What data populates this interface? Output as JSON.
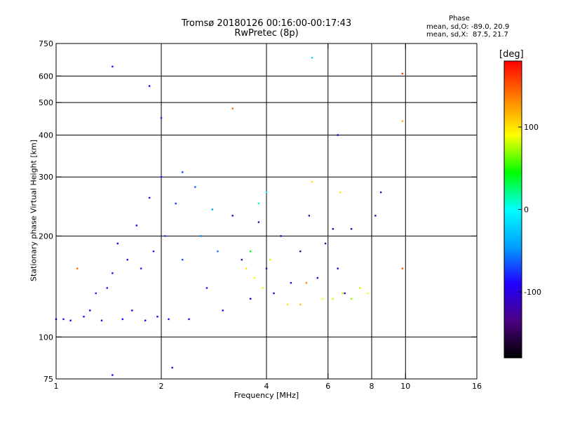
{
  "title": "Tromsø 20180126 00:16:00-00:17:43",
  "subtitle": "RwPretec (8p)",
  "stats": {
    "heading": "Phase",
    "line_o": "mean, sd,O: -89.0, 20.9",
    "line_x": "mean, sd,X:  87.5, 21.7"
  },
  "colorbar": {
    "unit": "[deg]",
    "range": [
      -180,
      180
    ],
    "ticks": [
      {
        "value": 100,
        "label": "100"
      },
      {
        "value": 0,
        "label": "0"
      },
      {
        "value": -100,
        "label": "-100"
      }
    ],
    "colormap": [
      "#000000",
      "#4b0082",
      "#2000ff",
      "#00a0ff",
      "#00ffff",
      "#00ff00",
      "#ffff00",
      "#ff8000",
      "#ff0000"
    ]
  },
  "chart_data": {
    "type": "scatter",
    "title": "Tromsø 20180126 00:16:00-00:17:43",
    "subtitle": "RwPretec (8p)",
    "xlabel": "Frequency [MHz]",
    "ylabel": "Stationary phase Virtual Height [km]",
    "xscale": "log",
    "yscale": "log",
    "xlim": [
      1,
      16
    ],
    "ylim": [
      75,
      750
    ],
    "xticks": [
      {
        "value": 1,
        "label": "1"
      },
      {
        "value": 2,
        "label": "2"
      },
      {
        "value": 4,
        "label": "4"
      },
      {
        "value": 6,
        "label": "6"
      },
      {
        "value": 8,
        "label": "8"
      },
      {
        "value": 10,
        "label": "10"
      },
      {
        "value": 16,
        "label": "16"
      }
    ],
    "yticks": [
      {
        "value": 75,
        "label": "75"
      },
      {
        "value": 100,
        "label": "100"
      },
      {
        "value": 200,
        "label": "200"
      },
      {
        "value": 300,
        "label": "300"
      },
      {
        "value": 400,
        "label": "400"
      },
      {
        "value": 500,
        "label": "500"
      },
      {
        "value": 600,
        "label": "600"
      },
      {
        "value": 750,
        "label": "750"
      }
    ],
    "grid_x": [
      2,
      4,
      6,
      8,
      10
    ],
    "grid_y": [
      100,
      200,
      300,
      400,
      500,
      600
    ],
    "grid": true,
    "color_by": "phase (deg)",
    "series": [
      {
        "values": [
          {
            "x": 1.0,
            "y": 113,
            "c": -95
          },
          {
            "x": 1.05,
            "y": 113,
            "c": -95
          },
          {
            "x": 1.1,
            "y": 112,
            "c": -90
          },
          {
            "x": 1.15,
            "y": 160,
            "c": 140
          },
          {
            "x": 1.2,
            "y": 115,
            "c": -95
          },
          {
            "x": 1.25,
            "y": 120,
            "c": -90
          },
          {
            "x": 1.3,
            "y": 135,
            "c": -80
          },
          {
            "x": 1.35,
            "y": 112,
            "c": -100
          },
          {
            "x": 1.4,
            "y": 140,
            "c": -85
          },
          {
            "x": 1.45,
            "y": 155,
            "c": -90
          },
          {
            "x": 1.5,
            "y": 190,
            "c": -90
          },
          {
            "x": 1.55,
            "y": 113,
            "c": -95
          },
          {
            "x": 1.6,
            "y": 170,
            "c": -85
          },
          {
            "x": 1.65,
            "y": 120,
            "c": -90
          },
          {
            "x": 1.7,
            "y": 215,
            "c": -90
          },
          {
            "x": 1.75,
            "y": 160,
            "c": -80
          },
          {
            "x": 1.8,
            "y": 112,
            "c": -95
          },
          {
            "x": 1.85,
            "y": 260,
            "c": -85
          },
          {
            "x": 1.9,
            "y": 180,
            "c": -80
          },
          {
            "x": 1.95,
            "y": 115,
            "c": -95
          },
          {
            "x": 2.0,
            "y": 300,
            "c": -80
          },
          {
            "x": 2.05,
            "y": 200,
            "c": -70
          },
          {
            "x": 2.1,
            "y": 113,
            "c": -95
          },
          {
            "x": 2.2,
            "y": 250,
            "c": -75
          },
          {
            "x": 2.3,
            "y": 170,
            "c": -70
          },
          {
            "x": 2.4,
            "y": 113,
            "c": -90
          },
          {
            "x": 2.5,
            "y": 280,
            "c": -60
          },
          {
            "x": 2.6,
            "y": 200,
            "c": -50
          },
          {
            "x": 2.7,
            "y": 140,
            "c": -85
          },
          {
            "x": 2.8,
            "y": 240,
            "c": -45
          },
          {
            "x": 2.9,
            "y": 180,
            "c": -55
          },
          {
            "x": 3.0,
            "y": 120,
            "c": -95
          },
          {
            "x": 3.2,
            "y": 230,
            "c": -110
          },
          {
            "x": 3.4,
            "y": 170,
            "c": -115
          },
          {
            "x": 3.6,
            "y": 130,
            "c": -110
          },
          {
            "x": 3.8,
            "y": 220,
            "c": -120
          },
          {
            "x": 4.0,
            "y": 160,
            "c": -115
          },
          {
            "x": 4.2,
            "y": 135,
            "c": -105
          },
          {
            "x": 4.4,
            "y": 200,
            "c": -110
          },
          {
            "x": 4.7,
            "y": 145,
            "c": -110
          },
          {
            "x": 5.0,
            "y": 180,
            "c": -120
          },
          {
            "x": 5.3,
            "y": 230,
            "c": -120
          },
          {
            "x": 5.6,
            "y": 150,
            "c": -115
          },
          {
            "x": 5.9,
            "y": 190,
            "c": -120
          },
          {
            "x": 6.2,
            "y": 210,
            "c": -125
          },
          {
            "x": 6.4,
            "y": 160,
            "c": -120
          },
          {
            "x": 6.7,
            "y": 135,
            "c": -110
          },
          {
            "x": 7.0,
            "y": 210,
            "c": -125
          },
          {
            "x": 3.5,
            "y": 160,
            "c": 100
          },
          {
            "x": 3.7,
            "y": 150,
            "c": 90
          },
          {
            "x": 3.9,
            "y": 140,
            "c": 95
          },
          {
            "x": 4.1,
            "y": 170,
            "c": 80
          },
          {
            "x": 4.6,
            "y": 125,
            "c": 100
          },
          {
            "x": 5.0,
            "y": 125,
            "c": 110
          },
          {
            "x": 5.2,
            "y": 145,
            "c": 130
          },
          {
            "x": 5.4,
            "y": 290,
            "c": 100
          },
          {
            "x": 5.8,
            "y": 130,
            "c": 90
          },
          {
            "x": 6.2,
            "y": 130,
            "c": 80
          },
          {
            "x": 6.6,
            "y": 135,
            "c": 75
          },
          {
            "x": 7.0,
            "y": 130,
            "c": 70
          },
          {
            "x": 7.4,
            "y": 140,
            "c": 80
          },
          {
            "x": 7.8,
            "y": 135,
            "c": 90
          },
          {
            "x": 6.5,
            "y": 270,
            "c": 100
          },
          {
            "x": 3.8,
            "y": 250,
            "c": 10
          },
          {
            "x": 4.0,
            "y": 270,
            "c": 0
          },
          {
            "x": 3.6,
            "y": 180,
            "c": 40
          },
          {
            "x": 1.45,
            "y": 640,
            "c": -100
          },
          {
            "x": 1.85,
            "y": 560,
            "c": -90
          },
          {
            "x": 2.0,
            "y": 450,
            "c": -80
          },
          {
            "x": 2.3,
            "y": 310,
            "c": -70
          },
          {
            "x": 3.2,
            "y": 480,
            "c": 140
          },
          {
            "x": 5.4,
            "y": 680,
            "c": -20
          },
          {
            "x": 6.4,
            "y": 400,
            "c": -110
          },
          {
            "x": 9.8,
            "y": 440,
            "c": 120
          },
          {
            "x": 9.8,
            "y": 610,
            "c": 160
          },
          {
            "x": 9.8,
            "y": 160,
            "c": 150
          },
          {
            "x": 1.45,
            "y": 77,
            "c": -100
          },
          {
            "x": 2.15,
            "y": 81,
            "c": -110
          },
          {
            "x": 8.2,
            "y": 230,
            "c": -120
          },
          {
            "x": 8.5,
            "y": 270,
            "c": -110
          }
        ]
      }
    ]
  }
}
